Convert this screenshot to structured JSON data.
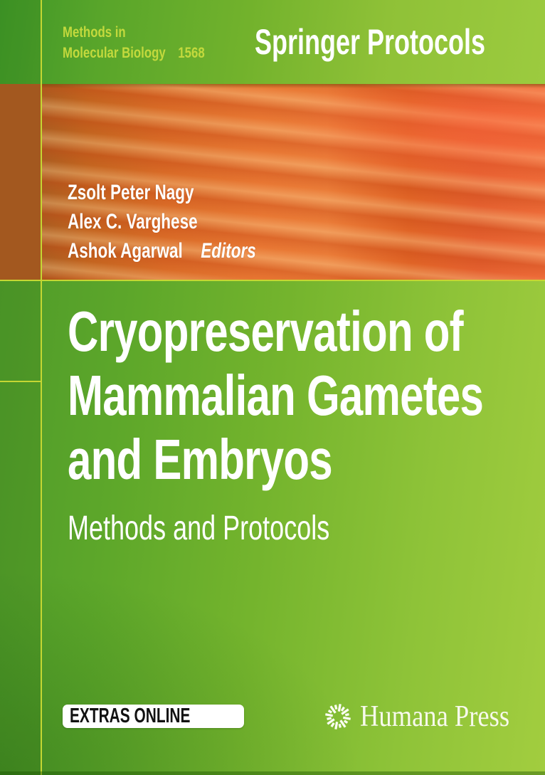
{
  "cover": {
    "series": {
      "line1": "Methods in",
      "line2": "Molecular Biology",
      "number": "1568"
    },
    "brand": "Springer Protocols",
    "editors": [
      "Zsolt Peter Nagy",
      "Alex C. Varghese",
      "Ashok Agarwal"
    ],
    "editors_label": "Editors",
    "title_lines": [
      "Cryopreservation of",
      "Mammalian Gametes",
      "and Embryos"
    ],
    "subtitle": "Methods and Protocols",
    "extras_badge": "EXTRAS ONLINE",
    "publisher": "Humana Press",
    "icons": {
      "publisher_logo": "starburst-icon"
    },
    "colors": {
      "accent_line": "#c5d733",
      "series_text": "#c3d93d",
      "orange_flat": "#a3581f",
      "badge_bg": "#ffffff",
      "badge_text": "#111111",
      "publisher_text": "#f7f9ec",
      "green_dark": "#4f9b29",
      "green_light": "#a2cd3f",
      "orange_bright": "#e87733"
    }
  }
}
